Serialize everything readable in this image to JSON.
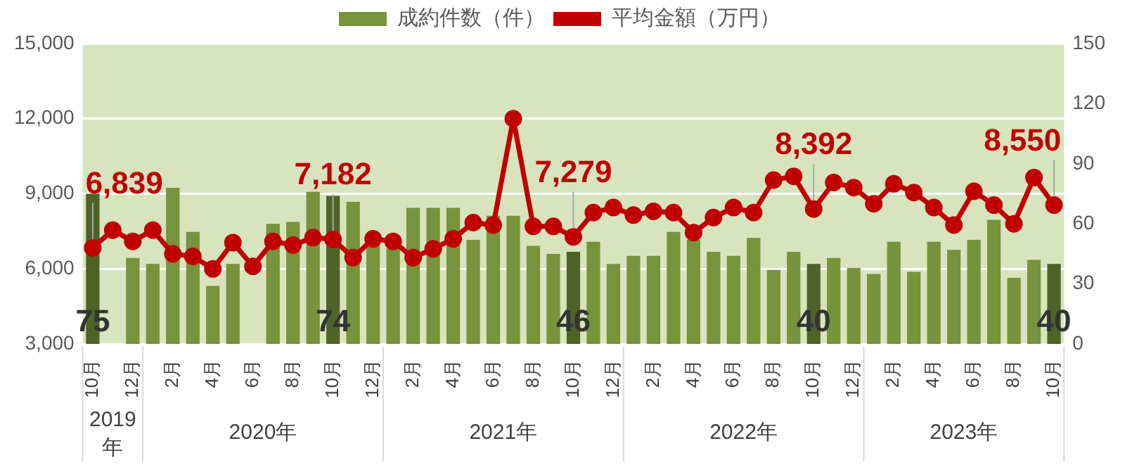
{
  "chart_data": {
    "type": "bar",
    "categories": [
      "10月",
      null,
      "12月",
      null,
      "2月",
      null,
      "4月",
      null,
      "6月",
      null,
      "8月",
      null,
      "10月",
      null,
      "12月",
      null,
      "2月",
      null,
      "4月",
      null,
      "6月",
      null,
      "8月",
      null,
      "10月",
      null,
      "12月",
      null,
      "2月",
      null,
      "4月",
      null,
      "6月",
      null,
      "8月",
      null,
      "10月",
      null,
      "12月",
      null,
      "2月",
      null,
      "4月",
      null,
      "6月",
      null,
      "8月",
      null,
      "10月"
    ],
    "series": [
      {
        "name": "成約件数（件）",
        "axis": "y2",
        "color": "#77933c",
        "colors": [
          "#4f6228",
          "#77933c",
          "#77933c",
          "#77933c",
          "#77933c",
          "#77933c",
          "#77933c",
          "#77933c",
          "#77933c",
          "#77933c",
          "#77933c",
          "#77933c",
          "#4f6228",
          "#77933c",
          "#77933c",
          "#77933c",
          "#77933c",
          "#77933c",
          "#77933c",
          "#77933c",
          "#77933c",
          "#77933c",
          "#77933c",
          "#77933c",
          "#4f6228",
          "#77933c",
          "#77933c",
          "#77933c",
          "#77933c",
          "#77933c",
          "#77933c",
          "#77933c",
          "#77933c",
          "#77933c",
          "#77933c",
          "#77933c",
          "#4f6228",
          "#77933c",
          "#77933c",
          "#77933c",
          "#77933c",
          "#77933c",
          "#77933c",
          "#77933c",
          "#77933c",
          "#77933c",
          "#77933c",
          "#77933c",
          "#4f6228"
        ],
        "values": [
          75,
          null,
          43,
          40,
          78,
          56,
          29,
          40,
          null,
          60,
          61,
          76,
          74,
          71,
          50,
          48,
          68,
          68,
          68,
          52,
          64,
          64,
          49,
          45,
          46,
          51,
          40,
          44,
          44,
          56,
          52,
          46,
          44,
          53,
          37,
          46,
          40,
          43,
          38,
          35,
          51,
          36,
          51,
          47,
          52,
          62,
          33,
          42,
          40
        ],
        "value_labels": [
          "75",
          null,
          null,
          null,
          null,
          null,
          null,
          null,
          null,
          null,
          null,
          null,
          "74",
          null,
          null,
          null,
          null,
          null,
          null,
          null,
          null,
          null,
          null,
          null,
          "46",
          null,
          null,
          null,
          null,
          null,
          null,
          null,
          null,
          null,
          null,
          null,
          "40",
          null,
          null,
          null,
          null,
          null,
          null,
          null,
          null,
          null,
          null,
          null,
          "40"
        ]
      },
      {
        "name": "平均金額（万円）",
        "type": "line",
        "color": "#c00000",
        "marker": "circle",
        "values": [
          6839,
          7550,
          7100,
          7550,
          6600,
          6500,
          6000,
          7050,
          6100,
          7100,
          6950,
          7250,
          7182,
          6450,
          7200,
          7100,
          6450,
          6800,
          7200,
          7850,
          7750,
          12000,
          7700,
          7700,
          7279,
          8250,
          8450,
          8150,
          8300,
          8250,
          7450,
          8050,
          8450,
          8250,
          9550,
          9700,
          8392,
          9450,
          9250,
          8600,
          9400,
          9050,
          8450,
          7750,
          9100,
          8550,
          7800,
          9650,
          8550
        ],
        "value_labels": [
          "6,839",
          null,
          null,
          null,
          null,
          null,
          null,
          null,
          null,
          null,
          null,
          null,
          "7,182",
          null,
          null,
          null,
          null,
          null,
          null,
          null,
          null,
          null,
          null,
          null,
          "7,279",
          null,
          null,
          null,
          null,
          null,
          null,
          null,
          null,
          null,
          null,
          null,
          "8,392",
          null,
          null,
          null,
          null,
          null,
          null,
          null,
          null,
          null,
          null,
          null,
          "8,550"
        ]
      }
    ],
    "ylim": [
      3000,
      15000
    ],
    "yticks": [
      {
        "value": 3000,
        "label": "3,000"
      },
      {
        "value": 6000,
        "label": "6,000"
      },
      {
        "value": 9000,
        "label": "9,000"
      },
      {
        "value": 12000,
        "label": "12,000"
      },
      {
        "value": 15000,
        "label": "15,000"
      }
    ],
    "y2lim": [
      0,
      150
    ],
    "y2ticks": [
      0,
      30,
      60,
      90,
      120,
      150
    ],
    "grid": "y",
    "legend": "top",
    "annotations": [
      "2019年",
      "2020年",
      "2021年",
      "2022年",
      "2023年"
    ]
  }
}
